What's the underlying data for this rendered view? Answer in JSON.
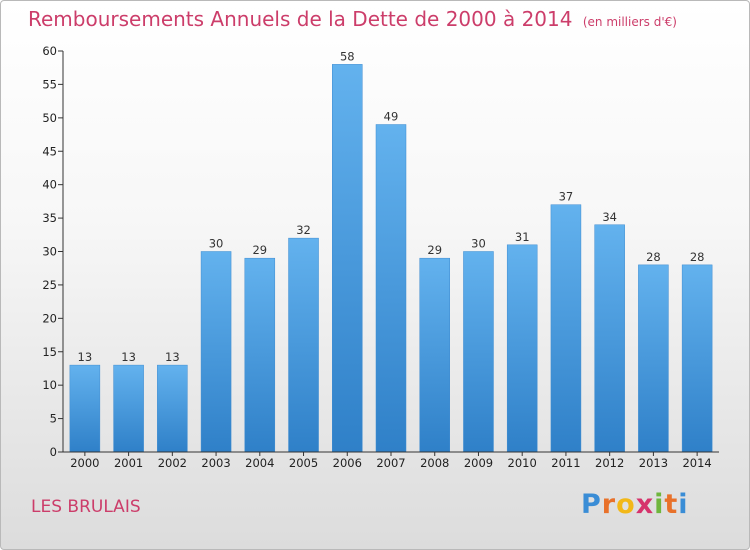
{
  "title": "Remboursements Annuels de la Dette de 2000 à 2014",
  "unit": "(en milliers d'€)",
  "commune": "LES BRULAIS",
  "logo": {
    "letters": [
      "P",
      "r",
      "o",
      "x",
      "i",
      "t",
      "i"
    ],
    "colors": [
      "#3a8dd6",
      "#e8712a",
      "#f2b818",
      "#d6336c",
      "#6fb63d",
      "#e8712a",
      "#3a8dd6"
    ]
  },
  "chart_data": {
    "type": "bar",
    "categories": [
      "2000",
      "2001",
      "2002",
      "2003",
      "2004",
      "2005",
      "2006",
      "2007",
      "2008",
      "2009",
      "2010",
      "2011",
      "2012",
      "2013",
      "2014"
    ],
    "values": [
      13,
      13,
      13,
      30,
      29,
      32,
      58,
      49,
      29,
      30,
      31,
      37,
      34,
      28,
      28
    ],
    "ylim": [
      0,
      60
    ],
    "yticks": [
      0,
      5,
      10,
      15,
      20,
      25,
      30,
      35,
      40,
      45,
      50,
      55,
      60
    ],
    "grid": false,
    "bar_color": "#4a9ee2"
  }
}
